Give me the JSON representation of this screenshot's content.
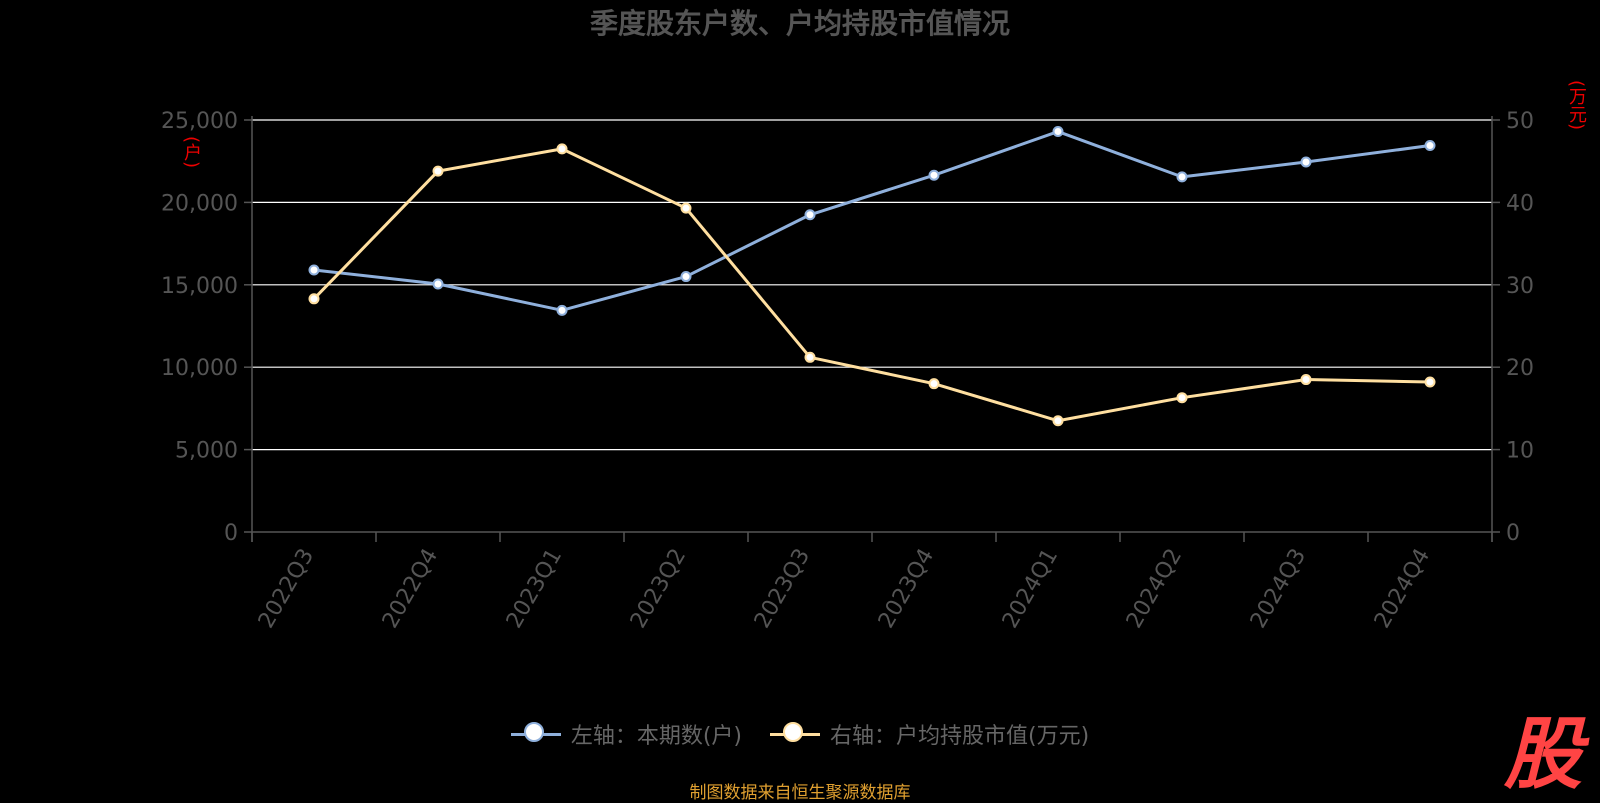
{
  "title": "季度股东户数、户均持股市值情况",
  "left_unit": "(户)",
  "right_unit": "(万元)",
  "source_note": "制图数据来自恒生聚源数据库",
  "logo_text": "股",
  "colors": {
    "background": "#000000",
    "series_households": "#8fb0dc",
    "series_value": "#ffdfa0",
    "grid": "#ffffff",
    "axis": "#555555",
    "tick_text": "#555555",
    "unit_text": "#ee0000",
    "source_text": "#e0a030",
    "logo": "#ff4444"
  },
  "chart_data": {
    "type": "line",
    "categories": [
      "2022Q3",
      "2022Q4",
      "2023Q1",
      "2023Q2",
      "2023Q3",
      "2023Q4",
      "2024Q1",
      "2024Q2",
      "2024Q3",
      "2024Q4"
    ],
    "series": [
      {
        "name": "左轴：本期数(户)",
        "axis": "left",
        "values": [
          15900,
          15050,
          13450,
          15500,
          19250,
          21650,
          24300,
          21550,
          22450,
          23450
        ]
      },
      {
        "name": "右轴：户均持股市值(万元)",
        "axis": "right",
        "values": [
          28.3,
          43.8,
          46.5,
          39.3,
          21.2,
          18.0,
          13.5,
          16.3,
          18.5,
          18.2
        ]
      }
    ],
    "left_axis": {
      "min": 0,
      "max": 25000,
      "ticks": [
        0,
        5000,
        10000,
        15000,
        20000,
        25000
      ],
      "tick_labels": [
        "0",
        "5,000",
        "10,000",
        "15,000",
        "20,000",
        "25,000"
      ]
    },
    "right_axis": {
      "min": 0,
      "max": 50,
      "ticks": [
        0,
        10,
        20,
        30,
        40,
        50
      ],
      "tick_labels": [
        "0",
        "10",
        "20",
        "30",
        "40",
        "50"
      ]
    },
    "grid": true,
    "legend_position": "bottom"
  }
}
